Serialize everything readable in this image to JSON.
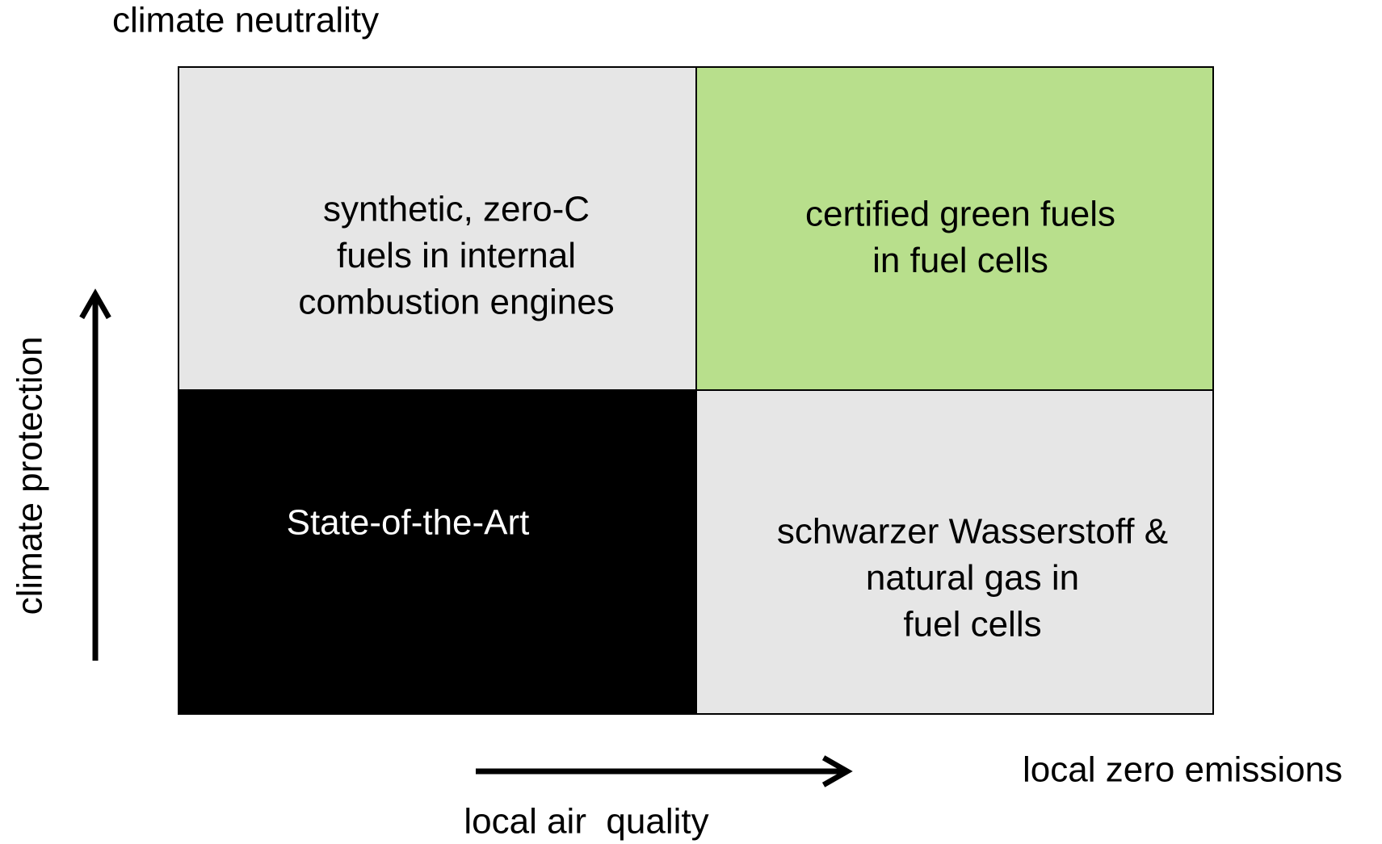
{
  "axes": {
    "top": "climate neutrality",
    "left": "climate protection",
    "right": "local zero emissions",
    "bottom": "local air  quality"
  },
  "quadrants": [
    {
      "lines": [
        "synthetic, zero-C",
        "fuels in internal",
        "combustion engines"
      ]
    },
    {
      "lines": [
        "certified green fuels",
        "in fuel cells"
      ]
    },
    {
      "lines": [
        "State-of-the-Art"
      ]
    },
    {
      "lines": [
        "schwarzer Wasserstoff &",
        "natural gas in",
        "fuel cells"
      ]
    }
  ]
}
